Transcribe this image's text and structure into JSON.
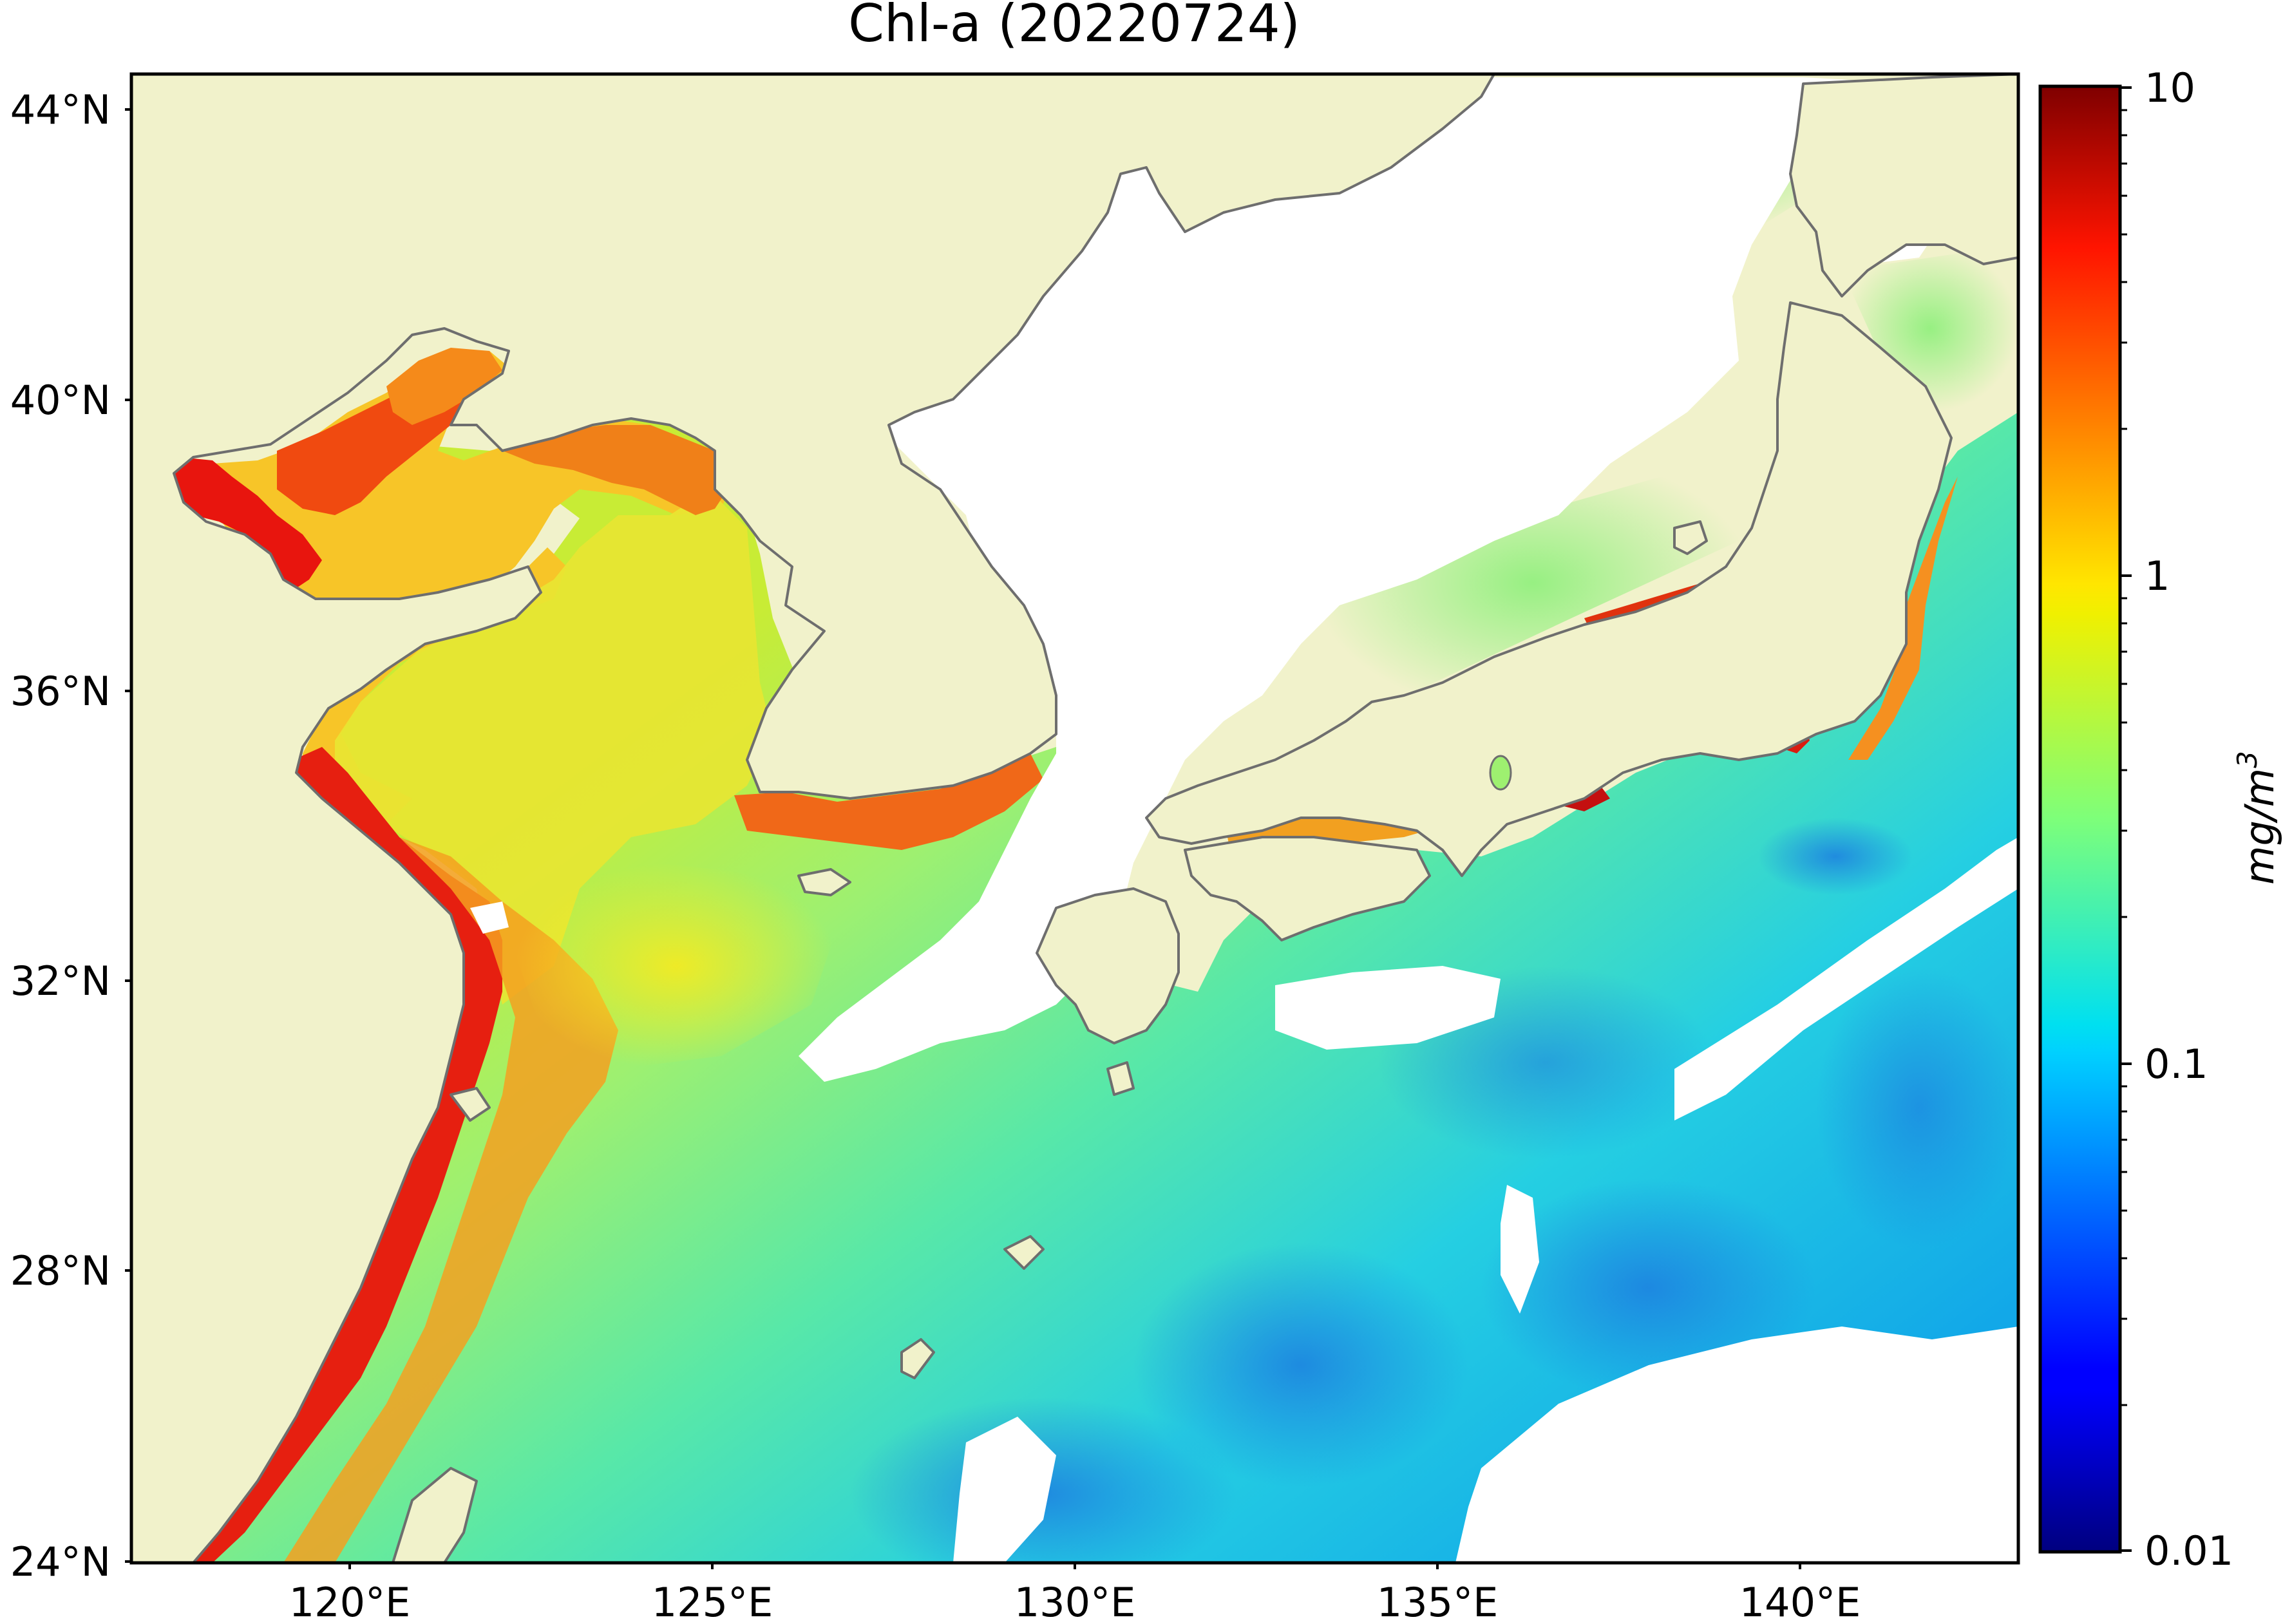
{
  "title": "Chl-a (20220724)",
  "map": {
    "region": "Yellow Sea, East China Sea, Sea of Japan and NW Pacific",
    "lon_range": [
      116.0,
      142.0
    ],
    "lat_range": [
      24.0,
      44.5
    ],
    "lon_ticks": [
      "120°E",
      "125°E",
      "130°E",
      "135°E",
      "140°E"
    ],
    "lat_ticks": [
      "44°N",
      "40°N",
      "36°N",
      "32°N",
      "28°N",
      "24°N"
    ],
    "colors": {
      "land": "#f1f2cb",
      "coastline": "#6e6e6e",
      "cloud_nodata": "#ffffff"
    }
  },
  "colorbar": {
    "label": "mg/m3",
    "scale": "log",
    "min": 0.01,
    "max": 10,
    "colormap": "jet",
    "tick_labels": [
      "10",
      "1",
      "0.1",
      "0.01"
    ]
  }
}
